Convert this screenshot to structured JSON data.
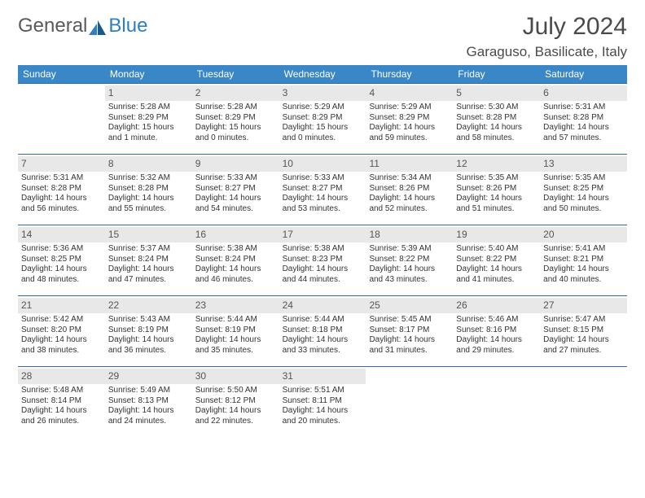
{
  "brand": {
    "part1": "General",
    "part2": "Blue"
  },
  "title": {
    "month": "July 2024",
    "location": "Garaguso, Basilicate, Italy"
  },
  "colors": {
    "header_bg": "#3a87c7",
    "header_text": "#ffffff",
    "divider": "#2d6ca3",
    "daynum_bg": "#e8e8e8",
    "text": "#333333",
    "title_text": "#4a4a4a"
  },
  "day_headers": [
    "Sunday",
    "Monday",
    "Tuesday",
    "Wednesday",
    "Thursday",
    "Friday",
    "Saturday"
  ],
  "weeks": [
    [
      {
        "empty": true
      },
      {
        "num": "1",
        "sunrise": "Sunrise: 5:28 AM",
        "sunset": "Sunset: 8:29 PM",
        "daylight": "Daylight: 15 hours and 1 minute."
      },
      {
        "num": "2",
        "sunrise": "Sunrise: 5:28 AM",
        "sunset": "Sunset: 8:29 PM",
        "daylight": "Daylight: 15 hours and 0 minutes."
      },
      {
        "num": "3",
        "sunrise": "Sunrise: 5:29 AM",
        "sunset": "Sunset: 8:29 PM",
        "daylight": "Daylight: 15 hours and 0 minutes."
      },
      {
        "num": "4",
        "sunrise": "Sunrise: 5:29 AM",
        "sunset": "Sunset: 8:29 PM",
        "daylight": "Daylight: 14 hours and 59 minutes."
      },
      {
        "num": "5",
        "sunrise": "Sunrise: 5:30 AM",
        "sunset": "Sunset: 8:28 PM",
        "daylight": "Daylight: 14 hours and 58 minutes."
      },
      {
        "num": "6",
        "sunrise": "Sunrise: 5:31 AM",
        "sunset": "Sunset: 8:28 PM",
        "daylight": "Daylight: 14 hours and 57 minutes."
      }
    ],
    [
      {
        "num": "7",
        "sunrise": "Sunrise: 5:31 AM",
        "sunset": "Sunset: 8:28 PM",
        "daylight": "Daylight: 14 hours and 56 minutes."
      },
      {
        "num": "8",
        "sunrise": "Sunrise: 5:32 AM",
        "sunset": "Sunset: 8:28 PM",
        "daylight": "Daylight: 14 hours and 55 minutes."
      },
      {
        "num": "9",
        "sunrise": "Sunrise: 5:33 AM",
        "sunset": "Sunset: 8:27 PM",
        "daylight": "Daylight: 14 hours and 54 minutes."
      },
      {
        "num": "10",
        "sunrise": "Sunrise: 5:33 AM",
        "sunset": "Sunset: 8:27 PM",
        "daylight": "Daylight: 14 hours and 53 minutes."
      },
      {
        "num": "11",
        "sunrise": "Sunrise: 5:34 AM",
        "sunset": "Sunset: 8:26 PM",
        "daylight": "Daylight: 14 hours and 52 minutes."
      },
      {
        "num": "12",
        "sunrise": "Sunrise: 5:35 AM",
        "sunset": "Sunset: 8:26 PM",
        "daylight": "Daylight: 14 hours and 51 minutes."
      },
      {
        "num": "13",
        "sunrise": "Sunrise: 5:35 AM",
        "sunset": "Sunset: 8:25 PM",
        "daylight": "Daylight: 14 hours and 50 minutes."
      }
    ],
    [
      {
        "num": "14",
        "sunrise": "Sunrise: 5:36 AM",
        "sunset": "Sunset: 8:25 PM",
        "daylight": "Daylight: 14 hours and 48 minutes."
      },
      {
        "num": "15",
        "sunrise": "Sunrise: 5:37 AM",
        "sunset": "Sunset: 8:24 PM",
        "daylight": "Daylight: 14 hours and 47 minutes."
      },
      {
        "num": "16",
        "sunrise": "Sunrise: 5:38 AM",
        "sunset": "Sunset: 8:24 PM",
        "daylight": "Daylight: 14 hours and 46 minutes."
      },
      {
        "num": "17",
        "sunrise": "Sunrise: 5:38 AM",
        "sunset": "Sunset: 8:23 PM",
        "daylight": "Daylight: 14 hours and 44 minutes."
      },
      {
        "num": "18",
        "sunrise": "Sunrise: 5:39 AM",
        "sunset": "Sunset: 8:22 PM",
        "daylight": "Daylight: 14 hours and 43 minutes."
      },
      {
        "num": "19",
        "sunrise": "Sunrise: 5:40 AM",
        "sunset": "Sunset: 8:22 PM",
        "daylight": "Daylight: 14 hours and 41 minutes."
      },
      {
        "num": "20",
        "sunrise": "Sunrise: 5:41 AM",
        "sunset": "Sunset: 8:21 PM",
        "daylight": "Daylight: 14 hours and 40 minutes."
      }
    ],
    [
      {
        "num": "21",
        "sunrise": "Sunrise: 5:42 AM",
        "sunset": "Sunset: 8:20 PM",
        "daylight": "Daylight: 14 hours and 38 minutes."
      },
      {
        "num": "22",
        "sunrise": "Sunrise: 5:43 AM",
        "sunset": "Sunset: 8:19 PM",
        "daylight": "Daylight: 14 hours and 36 minutes."
      },
      {
        "num": "23",
        "sunrise": "Sunrise: 5:44 AM",
        "sunset": "Sunset: 8:19 PM",
        "daylight": "Daylight: 14 hours and 35 minutes."
      },
      {
        "num": "24",
        "sunrise": "Sunrise: 5:44 AM",
        "sunset": "Sunset: 8:18 PM",
        "daylight": "Daylight: 14 hours and 33 minutes."
      },
      {
        "num": "25",
        "sunrise": "Sunrise: 5:45 AM",
        "sunset": "Sunset: 8:17 PM",
        "daylight": "Daylight: 14 hours and 31 minutes."
      },
      {
        "num": "26",
        "sunrise": "Sunrise: 5:46 AM",
        "sunset": "Sunset: 8:16 PM",
        "daylight": "Daylight: 14 hours and 29 minutes."
      },
      {
        "num": "27",
        "sunrise": "Sunrise: 5:47 AM",
        "sunset": "Sunset: 8:15 PM",
        "daylight": "Daylight: 14 hours and 27 minutes."
      }
    ],
    [
      {
        "num": "28",
        "sunrise": "Sunrise: 5:48 AM",
        "sunset": "Sunset: 8:14 PM",
        "daylight": "Daylight: 14 hours and 26 minutes."
      },
      {
        "num": "29",
        "sunrise": "Sunrise: 5:49 AM",
        "sunset": "Sunset: 8:13 PM",
        "daylight": "Daylight: 14 hours and 24 minutes."
      },
      {
        "num": "30",
        "sunrise": "Sunrise: 5:50 AM",
        "sunset": "Sunset: 8:12 PM",
        "daylight": "Daylight: 14 hours and 22 minutes."
      },
      {
        "num": "31",
        "sunrise": "Sunrise: 5:51 AM",
        "sunset": "Sunset: 8:11 PM",
        "daylight": "Daylight: 14 hours and 20 minutes."
      },
      {
        "empty": true
      },
      {
        "empty": true
      },
      {
        "empty": true
      }
    ]
  ]
}
